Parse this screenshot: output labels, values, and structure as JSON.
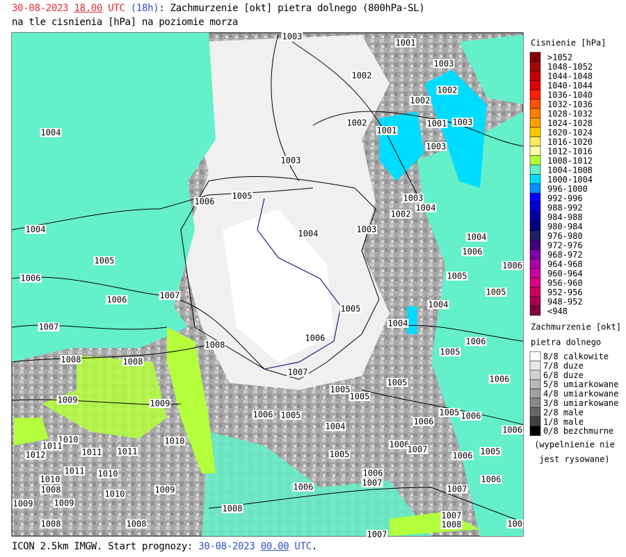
{
  "header": {
    "date": "30-08-2023",
    "hour": "18.00",
    "utc": "UTC",
    "lead": "(18h)",
    "title_rest": ": Zachmurzenie [okt] pietra dolnego (800hPa-SL)",
    "line2": "na tle cisnienia [hPa] na poziomie morza"
  },
  "isobar_labels": [
    "1003",
    "1001",
    "1003",
    "1002",
    "1002",
    "1002",
    "1002",
    "1001",
    "1003",
    "1001",
    "1004",
    "1003",
    "1003",
    "1005",
    "1006",
    "1003",
    "1004",
    "1002",
    "1004",
    "1004",
    "1003",
    "1004",
    "1006",
    "1005",
    "1006",
    "1006",
    "1005",
    "1006",
    "1007",
    "1005",
    "1004",
    "1005",
    "1004",
    "1007",
    "1006",
    "1006",
    "1008",
    "1005",
    "1008",
    "1008",
    "1007",
    "1005",
    "1006",
    "1005",
    "1005",
    "1009",
    "1009",
    "1006",
    "1005",
    "1005",
    "1006",
    "1004",
    "1006",
    "1006",
    "1010",
    "1010",
    "1011",
    "1006",
    "1007",
    "1012",
    "1011",
    "1011",
    "1005",
    "1006",
    "1005",
    "1011",
    "1010",
    "1006",
    "1010",
    "1007",
    "1006",
    "1008",
    "1010",
    "1006",
    "1007",
    "1009",
    "1009",
    "1009",
    "1008",
    "1007",
    "1008",
    "1008",
    "1008",
    "1007",
    "100"
  ],
  "legend_pressure": {
    "title": "Cisnienie [hPa]",
    "items": [
      {
        "label": ">1052",
        "color": "#800000"
      },
      {
        "label": "1048-1052",
        "color": "#a00808"
      },
      {
        "label": "1044-1048",
        "color": "#c00000"
      },
      {
        "label": "1040-1044",
        "color": "#e00000"
      },
      {
        "label": "1036-1040",
        "color": "#ff2000"
      },
      {
        "label": "1032-1036",
        "color": "#ff5000"
      },
      {
        "label": "1028-1032",
        "color": "#ff8000"
      },
      {
        "label": "1024-1028",
        "color": "#ffa000"
      },
      {
        "label": "1020-1024",
        "color": "#ffc800"
      },
      {
        "label": "1016-1020",
        "color": "#ffe860"
      },
      {
        "label": "1012-1016",
        "color": "#ffffa8"
      },
      {
        "label": "1008-1012",
        "color": "#b4ff3c"
      },
      {
        "label": "1004-1008",
        "color": "#64f0c8"
      },
      {
        "label": "1000-1004",
        "color": "#00dcff"
      },
      {
        "label": "996-1000",
        "color": "#0090ff"
      },
      {
        "label": "992-996",
        "color": "#0000ff"
      },
      {
        "label": "988-992",
        "color": "#0000d0"
      },
      {
        "label": "984-988",
        "color": "#0000a0"
      },
      {
        "label": "980-984",
        "color": "#000080"
      },
      {
        "label": "976-980",
        "color": "#202068"
      },
      {
        "label": "972-976",
        "color": "#400080"
      },
      {
        "label": "968-972",
        "color": "#8000a8"
      },
      {
        "label": "964-968",
        "color": "#a800a8"
      },
      {
        "label": "960-964",
        "color": "#c800a0"
      },
      {
        "label": "956-960",
        "color": "#d80080"
      },
      {
        "label": "952-956",
        "color": "#c80060"
      },
      {
        "label": "948-952",
        "color": "#a80050"
      },
      {
        "label": "<948",
        "color": "#800040"
      }
    ]
  },
  "legend_cloud": {
    "title": "Zachmurzenie [okt]",
    "subtitle": "pietra dolnego",
    "items": [
      {
        "label": "8/8 calkowite",
        "color": "#ffffff"
      },
      {
        "label": "7/8 duze",
        "color": "#e8e8e8"
      },
      {
        "label": "6/8 duze",
        "color": "#d0d0d0"
      },
      {
        "label": "5/8 umiarkowane",
        "color": "#b8b8b8"
      },
      {
        "label": "4/8 umiarkowane",
        "color": "#a0a0a0"
      },
      {
        "label": "3/8 umiarkowane",
        "color": "#888888"
      },
      {
        "label": "2/8 male",
        "color": "#686868"
      },
      {
        "label": "1/8 male",
        "color": "#404040"
      },
      {
        "label": "0/8 bezchmurne",
        "color": "#000000"
      }
    ],
    "note_1": "(wypelnienie nie",
    "note_2": "jest rysowane)"
  },
  "footer": {
    "prefix": "ICON 2.5km IMGW. Start prognozy: ",
    "date": "30-08-2023",
    "hour": "00.00",
    "utc": "UTC",
    "end": "."
  }
}
